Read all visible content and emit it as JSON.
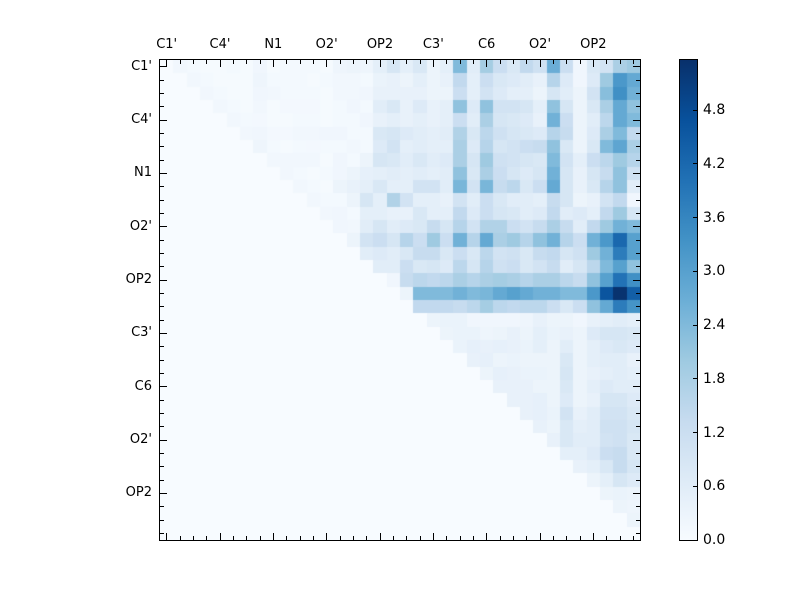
{
  "figure": {
    "background": "#ffffff"
  },
  "chart_data": {
    "type": "heatmap",
    "title": "",
    "colormap": "Blues",
    "colormap_stops": [
      "#f7fbff",
      "#deebf7",
      "#c6dbef",
      "#9ecae1",
      "#6baed6",
      "#4292c6",
      "#2171b5",
      "#08519c",
      "#08306b"
    ],
    "vmin": 0.0,
    "vmax": 5.36,
    "grid_size": 36,
    "x_axis_side": "top",
    "y_axis_side": "left",
    "axis_tick_labels": [
      "C1'",
      "C4'",
      "N1",
      "O2'",
      "OP2",
      "C3'",
      "C6",
      "O2'",
      "OP2"
    ],
    "axis_tick_positions": [
      0,
      4,
      8,
      12,
      16,
      20,
      24,
      28,
      32
    ],
    "colorbar": {
      "position": "right",
      "tick_labels": [
        "0.0",
        "0.6",
        "1.2",
        "1.8",
        "2.4",
        "3.0",
        "3.6",
        "4.2",
        "4.8"
      ],
      "tick_values": [
        0.0,
        0.6,
        1.2,
        1.8,
        2.4,
        3.0,
        3.6,
        4.2,
        4.8
      ]
    },
    "matrix": [
      [
        0,
        0.15,
        0.1,
        0.05,
        0.05,
        0.1,
        0.05,
        0.2,
        0.05,
        0.1,
        0.1,
        0.1,
        0.05,
        0.25,
        0.3,
        0.25,
        0.5,
        0.9,
        0.5,
        0.8,
        0.3,
        0.5,
        2.4,
        0.6,
        1.9,
        1.2,
        0.8,
        1.4,
        1.1,
        2.7,
        1.2,
        0.2,
        0.8,
        1.0,
        1.8,
        2.0
      ],
      [
        0,
        0,
        0.15,
        0.1,
        0.05,
        0.05,
        0.05,
        0.25,
        0.1,
        0.1,
        0.1,
        0.05,
        0.1,
        0.15,
        0.15,
        0.1,
        0.35,
        0.4,
        0.3,
        0.5,
        0.3,
        0.4,
        1.4,
        0.5,
        1.2,
        0.8,
        0.7,
        0.6,
        0.4,
        1.6,
        0.7,
        0.2,
        0.7,
        2.0,
        3.2,
        2.8
      ],
      [
        0,
        0,
        0,
        0.15,
        0.1,
        0.05,
        0.05,
        0.2,
        0.15,
        0.1,
        0.1,
        0.1,
        0.05,
        0.15,
        0.15,
        0.2,
        0.4,
        0.4,
        0.4,
        0.4,
        0.3,
        0.3,
        1.2,
        0.5,
        1.0,
        0.7,
        0.5,
        0.5,
        0.3,
        0.9,
        0.6,
        0.3,
        1.0,
        2.3,
        3.4,
        2.6
      ],
      [
        0,
        0,
        0,
        0,
        0.15,
        0.1,
        0.05,
        0.15,
        0.05,
        0.12,
        0.12,
        0.12,
        0.05,
        0.1,
        0.2,
        0.1,
        0.6,
        0.8,
        0.4,
        0.7,
        0.4,
        0.5,
        2.2,
        0.7,
        2.2,
        1.0,
        1.0,
        0.9,
        0.5,
        2.2,
        0.9,
        0.3,
        0.8,
        1.8,
        2.8,
        2.2
      ],
      [
        0,
        0,
        0,
        0,
        0,
        0.15,
        0.1,
        0.12,
        0.05,
        0.05,
        0.1,
        0.1,
        0.05,
        0.1,
        0.1,
        0.2,
        0.4,
        0.5,
        0.4,
        0.5,
        0.4,
        0.5,
        1.2,
        0.6,
        1.8,
        0.9,
        0.8,
        0.7,
        0.4,
        2.6,
        1.2,
        0.3,
        0.6,
        1.5,
        2.8,
        2.4
      ],
      [
        0,
        0,
        0,
        0,
        0,
        0,
        0.15,
        0.2,
        0.12,
        0.12,
        0.15,
        0.15,
        0.2,
        0.2,
        0.1,
        0.1,
        0.8,
        0.9,
        0.7,
        0.6,
        0.5,
        0.6,
        1.7,
        0.8,
        1.5,
        1.1,
        0.9,
        0.8,
        0.7,
        1.6,
        1.3,
        0.3,
        0.7,
        1.8,
        2.4,
        1.4
      ],
      [
        0,
        0,
        0,
        0,
        0,
        0,
        0,
        0.25,
        0.1,
        0.05,
        0.1,
        0.12,
        0.1,
        0.1,
        0.15,
        0.1,
        0.7,
        1.0,
        0.5,
        0.6,
        0.5,
        0.5,
        1.8,
        0.7,
        1.6,
        0.9,
        1.0,
        1.2,
        1.3,
        2.2,
        0.8,
        0.3,
        0.8,
        2.4,
        2.9,
        1.8
      ],
      [
        0,
        0,
        0,
        0,
        0,
        0,
        0,
        0,
        0.15,
        0.15,
        0.15,
        0.15,
        0.05,
        0.2,
        0.1,
        0.3,
        0.9,
        0.8,
        0.6,
        0.8,
        0.6,
        0.7,
        1.8,
        0.9,
        2.0,
        1.1,
        1.0,
        0.9,
        0.8,
        2.4,
        1.0,
        0.5,
        1.2,
        1.5,
        2.0,
        1.6
      ],
      [
        0,
        0,
        0,
        0,
        0,
        0,
        0,
        0,
        0,
        0.15,
        0.1,
        0.05,
        0.1,
        0.2,
        0.3,
        0.45,
        0.5,
        0.6,
        0.5,
        0.6,
        0.5,
        0.6,
        2.2,
        0.8,
        1.8,
        1.2,
        0.9,
        0.7,
        0.9,
        2.6,
        0.9,
        0.4,
        0.9,
        1.3,
        2.2,
        1.1
      ],
      [
        0,
        0,
        0,
        0,
        0,
        0,
        0,
        0,
        0,
        0,
        0.15,
        0.1,
        0.05,
        0.3,
        0.4,
        0.5,
        0.8,
        0.5,
        0.5,
        1.0,
        1.0,
        0.6,
        2.5,
        1.0,
        2.5,
        1.3,
        1.5,
        0.8,
        1.2,
        2.8,
        0.9,
        0.4,
        0.8,
        1.6,
        2.2,
        0.6
      ],
      [
        0,
        0,
        0,
        0,
        0,
        0,
        0,
        0,
        0,
        0,
        0,
        0.15,
        0.1,
        0.1,
        0.3,
        0.9,
        0.5,
        1.7,
        1.0,
        0.5,
        0.5,
        0.4,
        1.0,
        0.6,
        1.2,
        0.8,
        0.6,
        0.6,
        0.5,
        1.3,
        0.9,
        0.3,
        0.4,
        1.0,
        1.4,
        0.2
      ],
      [
        0,
        0,
        0,
        0,
        0,
        0,
        0,
        0,
        0,
        0,
        0,
        0,
        0.15,
        0.2,
        0.1,
        0.5,
        0.5,
        0.4,
        0.4,
        0.8,
        0.5,
        0.5,
        1.4,
        0.7,
        1.2,
        0.9,
        0.8,
        0.6,
        0.7,
        1.4,
        0.6,
        0.7,
        0.5,
        1.4,
        2.0,
        0.9
      ],
      [
        0,
        0,
        0,
        0,
        0,
        0,
        0,
        0,
        0,
        0,
        0,
        0,
        0,
        0.2,
        0.15,
        0.6,
        0.9,
        0.6,
        0.7,
        0.8,
        1.3,
        0.9,
        1.6,
        1.0,
        1.7,
        1.7,
        1.2,
        1.0,
        1.3,
        1.8,
        1.3,
        0.6,
        1.4,
        2.0,
        2.6,
        2.4
      ],
      [
        0,
        0,
        0,
        0,
        0,
        0,
        0,
        0,
        0,
        0,
        0,
        0,
        0,
        0,
        0.3,
        1.0,
        1.2,
        0.9,
        1.6,
        1.2,
        2.0,
        1.2,
        2.6,
        1.6,
        2.8,
        1.8,
        2.0,
        1.6,
        2.2,
        2.6,
        1.6,
        1.2,
        2.6,
        3.2,
        4.2,
        3.0
      ],
      [
        0,
        0,
        0,
        0,
        0,
        0,
        0,
        0,
        0,
        0,
        0,
        0,
        0,
        0,
        0,
        0.6,
        0.7,
        0.6,
        0.8,
        1.3,
        1.3,
        0.8,
        1.2,
        0.8,
        1.5,
        1.0,
        1.1,
        0.8,
        1.3,
        1.4,
        0.9,
        1.1,
        2.0,
        2.6,
        3.8,
        3.0
      ],
      [
        0,
        0,
        0,
        0,
        0,
        0,
        0,
        0,
        0,
        0,
        0,
        0,
        0,
        0,
        0,
        0,
        0.6,
        0.6,
        1.2,
        0.8,
        0.9,
        0.7,
        1.5,
        0.9,
        1.6,
        1.1,
        1.2,
        0.8,
        1.0,
        1.3,
        0.6,
        0.9,
        1.5,
        2.4,
        3.0,
        2.2
      ],
      [
        0,
        0,
        0,
        0,
        0,
        0,
        0,
        0,
        0,
        0,
        0,
        0,
        0,
        0,
        0,
        0,
        0,
        0.2,
        1.3,
        1.5,
        1.4,
        1.5,
        1.8,
        1.6,
        1.8,
        1.9,
        1.8,
        1.6,
        1.8,
        1.8,
        1.5,
        1.3,
        2.2,
        3.0,
        4.0,
        3.4
      ],
      [
        0,
        0,
        0,
        0,
        0,
        0,
        0,
        0,
        0,
        0,
        0,
        0,
        0,
        0,
        0,
        0,
        0,
        0,
        0.3,
        2.4,
        2.4,
        2.4,
        2.6,
        2.4,
        2.5,
        2.8,
        3.0,
        2.8,
        2.6,
        2.6,
        2.4,
        2.4,
        3.2,
        4.6,
        5.3,
        4.4
      ],
      [
        0,
        0,
        0,
        0,
        0,
        0,
        0,
        0,
        0,
        0,
        0,
        0,
        0,
        0,
        0,
        0,
        0,
        0,
        0,
        1.4,
        1.4,
        1.4,
        1.3,
        1.5,
        1.9,
        1.5,
        1.4,
        1.5,
        1.5,
        1.2,
        0.8,
        1.2,
        2.2,
        2.8,
        3.8,
        3.3
      ],
      [
        0,
        0,
        0,
        0,
        0,
        0,
        0,
        0,
        0,
        0,
        0,
        0,
        0,
        0,
        0,
        0,
        0,
        0,
        0,
        0,
        0.3,
        0.35,
        0.35,
        0.2,
        0.2,
        0.2,
        0.2,
        0.25,
        0.4,
        0.3,
        0.3,
        0.2,
        0.4,
        0.5,
        0.6,
        0.5
      ],
      [
        0,
        0,
        0,
        0,
        0,
        0,
        0,
        0,
        0,
        0,
        0,
        0,
        0,
        0,
        0,
        0,
        0,
        0,
        0,
        0,
        0,
        0.3,
        0.35,
        0.35,
        0.25,
        0.3,
        0.4,
        0.3,
        0.5,
        0.35,
        0.4,
        0.3,
        0.7,
        0.9,
        0.9,
        0.8
      ],
      [
        0,
        0,
        0,
        0,
        0,
        0,
        0,
        0,
        0,
        0,
        0,
        0,
        0,
        0,
        0,
        0,
        0,
        0,
        0,
        0,
        0,
        0,
        0.35,
        0.45,
        0.4,
        0.45,
        0.4,
        0.35,
        0.5,
        0.3,
        0.6,
        0.3,
        0.5,
        0.7,
        0.8,
        0.7
      ],
      [
        0,
        0,
        0,
        0,
        0,
        0,
        0,
        0,
        0,
        0,
        0,
        0,
        0,
        0,
        0,
        0,
        0,
        0,
        0,
        0,
        0,
        0,
        0,
        0.4,
        0.45,
        0.3,
        0.35,
        0.3,
        0.3,
        0.3,
        0.8,
        0.3,
        0.5,
        0.6,
        0.6,
        0.4
      ],
      [
        0,
        0,
        0,
        0,
        0,
        0,
        0,
        0,
        0,
        0,
        0,
        0,
        0,
        0,
        0,
        0,
        0,
        0,
        0,
        0,
        0,
        0,
        0,
        0,
        0.3,
        0.45,
        0.4,
        0.35,
        0.35,
        0.3,
        0.9,
        0.3,
        0.4,
        0.5,
        0.6,
        0.5
      ],
      [
        0,
        0,
        0,
        0,
        0,
        0,
        0,
        0,
        0,
        0,
        0,
        0,
        0,
        0,
        0,
        0,
        0,
        0,
        0,
        0,
        0,
        0,
        0,
        0,
        0,
        0.4,
        0.4,
        0.4,
        0.3,
        0.3,
        0.8,
        0.3,
        0.5,
        0.7,
        0.6,
        0.6
      ],
      [
        0,
        0,
        0,
        0,
        0,
        0,
        0,
        0,
        0,
        0,
        0,
        0,
        0,
        0,
        0,
        0,
        0,
        0,
        0,
        0,
        0,
        0,
        0,
        0,
        0,
        0,
        0.4,
        0.4,
        0.45,
        0.3,
        0.7,
        0.3,
        0.4,
        0.9,
        0.9,
        0.7
      ],
      [
        0,
        0,
        0,
        0,
        0,
        0,
        0,
        0,
        0,
        0,
        0,
        0,
        0,
        0,
        0,
        0,
        0,
        0,
        0,
        0,
        0,
        0,
        0,
        0,
        0,
        0,
        0,
        0.4,
        0.45,
        0.35,
        1.0,
        0.4,
        0.6,
        1.0,
        1.0,
        0.8
      ],
      [
        0,
        0,
        0,
        0,
        0,
        0,
        0,
        0,
        0,
        0,
        0,
        0,
        0,
        0,
        0,
        0,
        0,
        0,
        0,
        0,
        0,
        0,
        0,
        0,
        0,
        0,
        0,
        0,
        0.4,
        0.3,
        0.8,
        0.5,
        0.6,
        1.1,
        1.1,
        0.9
      ],
      [
        0,
        0,
        0,
        0,
        0,
        0,
        0,
        0,
        0,
        0,
        0,
        0,
        0,
        0,
        0,
        0,
        0,
        0,
        0,
        0,
        0,
        0,
        0,
        0,
        0,
        0,
        0,
        0,
        0,
        0.4,
        0.8,
        0.6,
        0.6,
        1.0,
        1.1,
        0.8
      ],
      [
        0,
        0,
        0,
        0,
        0,
        0,
        0,
        0,
        0,
        0,
        0,
        0,
        0,
        0,
        0,
        0,
        0,
        0,
        0,
        0,
        0,
        0,
        0,
        0,
        0,
        0,
        0,
        0,
        0,
        0,
        0.5,
        0.5,
        0.7,
        1.2,
        1.3,
        0.8
      ],
      [
        0,
        0,
        0,
        0,
        0,
        0,
        0,
        0,
        0,
        0,
        0,
        0,
        0,
        0,
        0,
        0,
        0,
        0,
        0,
        0,
        0,
        0,
        0,
        0,
        0,
        0,
        0,
        0,
        0,
        0,
        0,
        0.4,
        0.5,
        0.8,
        1.3,
        0.9
      ],
      [
        0,
        0,
        0,
        0,
        0,
        0,
        0,
        0,
        0,
        0,
        0,
        0,
        0,
        0,
        0,
        0,
        0,
        0,
        0,
        0,
        0,
        0,
        0,
        0,
        0,
        0,
        0,
        0,
        0,
        0,
        0,
        0,
        0.3,
        0.5,
        0.9,
        0.7
      ],
      [
        0,
        0,
        0,
        0,
        0,
        0,
        0,
        0,
        0,
        0,
        0,
        0,
        0,
        0,
        0,
        0,
        0,
        0,
        0,
        0,
        0,
        0,
        0,
        0,
        0,
        0,
        0,
        0,
        0,
        0,
        0,
        0,
        0,
        0.3,
        0.35,
        0.3
      ],
      [
        0,
        0,
        0,
        0,
        0,
        0,
        0,
        0,
        0,
        0,
        0,
        0,
        0,
        0,
        0,
        0,
        0,
        0,
        0,
        0,
        0,
        0,
        0,
        0,
        0,
        0,
        0,
        0,
        0,
        0,
        0,
        0,
        0,
        0,
        0.3,
        0.25
      ],
      [
        0,
        0,
        0,
        0,
        0,
        0,
        0,
        0,
        0,
        0,
        0,
        0,
        0,
        0,
        0,
        0,
        0,
        0,
        0,
        0,
        0,
        0,
        0,
        0,
        0,
        0,
        0,
        0,
        0,
        0,
        0,
        0,
        0,
        0,
        0,
        0.3
      ],
      [
        0,
        0,
        0,
        0,
        0,
        0,
        0,
        0,
        0,
        0,
        0,
        0,
        0,
        0,
        0,
        0,
        0,
        0,
        0,
        0,
        0,
        0,
        0,
        0,
        0,
        0,
        0,
        0,
        0,
        0,
        0,
        0,
        0,
        0,
        0,
        0
      ]
    ]
  }
}
